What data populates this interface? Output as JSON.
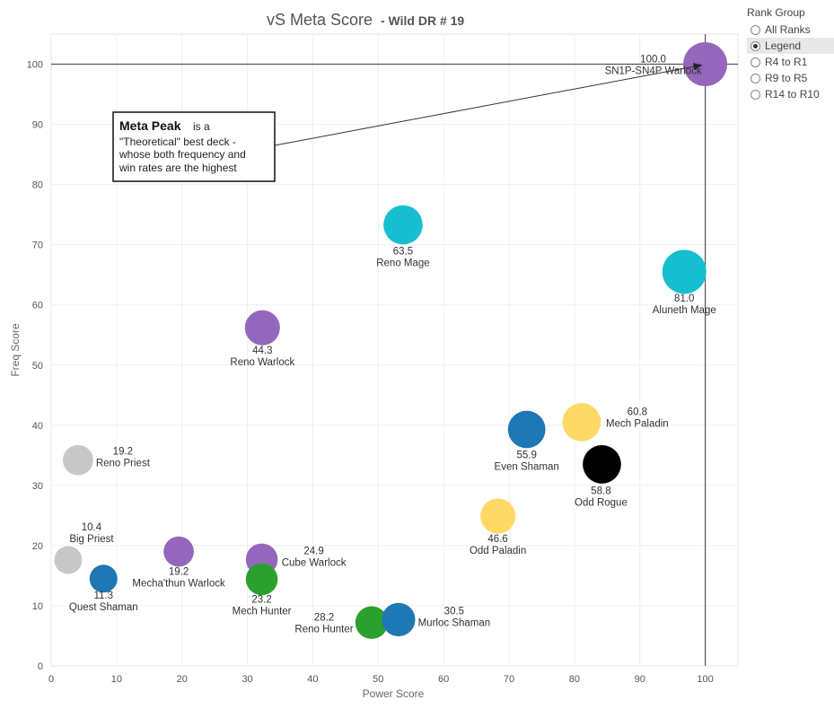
{
  "chart_data": {
    "type": "scatter",
    "title": "vS Meta Score",
    "subtitle": "- Wild DR # 19",
    "xlabel": "Power Score",
    "ylabel": "Freq Score",
    "xlim": [
      0,
      105
    ],
    "ylim": [
      0,
      105
    ],
    "xticks": [
      "0",
      "10",
      "20",
      "30",
      "40",
      "50",
      "60",
      "70",
      "80",
      "90",
      "100"
    ],
    "yticks": [
      "0",
      "10",
      "20",
      "30",
      "40",
      "50",
      "60",
      "70",
      "80",
      "90",
      "100"
    ],
    "grid": true,
    "reference_lines": {
      "x": 100,
      "y": 100
    },
    "points": [
      {
        "name": "SN1P-SN4P Warlock",
        "score": "100.0",
        "x": 100,
        "y": 100,
        "color": "#9467bd",
        "size": 3
      },
      {
        "name": "Aluneth Mage",
        "score": "81.0",
        "x": 96.8,
        "y": 65.5,
        "color": "#17becf",
        "size": 3
      },
      {
        "name": "Reno Mage",
        "score": "63.5",
        "x": 53.8,
        "y": 73.3,
        "color": "#17becf",
        "size": 2.4
      },
      {
        "name": "Reno Warlock",
        "score": "44.3",
        "x": 32.3,
        "y": 56.2,
        "color": "#9467bd",
        "size": 1.9
      },
      {
        "name": "Mech Paladin",
        "score": "60.8",
        "x": 81.1,
        "y": 40.5,
        "color": "#ffd966",
        "size": 2.3
      },
      {
        "name": "Even Shaman",
        "score": "55.9",
        "x": 72.7,
        "y": 39.3,
        "color": "#1f77b4",
        "size": 2.2
      },
      {
        "name": "Odd Rogue",
        "score": "58.8",
        "x": 84.2,
        "y": 33.5,
        "color": "#000000",
        "size": 2.3
      },
      {
        "name": "Odd Paladin",
        "score": "46.6",
        "x": 68.3,
        "y": 24.9,
        "color": "#ffd966",
        "size": 1.9
      },
      {
        "name": "Reno Priest",
        "score": "19.2",
        "x": 4.1,
        "y": 34.2,
        "color": "#c7c7c7",
        "size": 1.3
      },
      {
        "name": "Big Priest",
        "score": "10.4",
        "x": 2.6,
        "y": 17.6,
        "color": "#c7c7c7",
        "size": 1
      },
      {
        "name": "Quest Shaman",
        "score": "11.3",
        "x": 8.0,
        "y": 14.5,
        "color": "#1f77b4",
        "size": 1
      },
      {
        "name": "Mecha'thun Warlock",
        "score": "19.2",
        "x": 19.5,
        "y": 19.0,
        "color": "#9467bd",
        "size": 1.3
      },
      {
        "name": "Cube Warlock",
        "score": "24.9",
        "x": 32.2,
        "y": 17.7,
        "color": "#9467bd",
        "size": 1.5
      },
      {
        "name": "Mech Hunter",
        "score": "23.2",
        "x": 32.2,
        "y": 14.4,
        "color": "#2ca02c",
        "size": 1.5
      },
      {
        "name": "Reno Hunter",
        "score": "28.2",
        "x": 49.0,
        "y": 7.2,
        "color": "#2ca02c",
        "size": 1.6
      },
      {
        "name": "Murloc Shaman",
        "score": "30.5",
        "x": 53.1,
        "y": 7.7,
        "color": "#1f77b4",
        "size": 1.7
      }
    ],
    "annotation": {
      "bold": "Meta Peak",
      "lines": [
        "is a",
        "\"Theoretical\" best deck -",
        "whose both frequency and",
        "win rates are the highest"
      ],
      "target": {
        "x": 100,
        "y": 100
      }
    }
  },
  "legend": {
    "title": "Rank Group",
    "items": [
      {
        "label": "All Ranks",
        "selected": false
      },
      {
        "label": "Legend",
        "selected": true
      },
      {
        "label": "R4 to R1",
        "selected": false
      },
      {
        "label": "R9 to R5",
        "selected": false
      },
      {
        "label": "R14 to R10",
        "selected": false
      }
    ]
  }
}
